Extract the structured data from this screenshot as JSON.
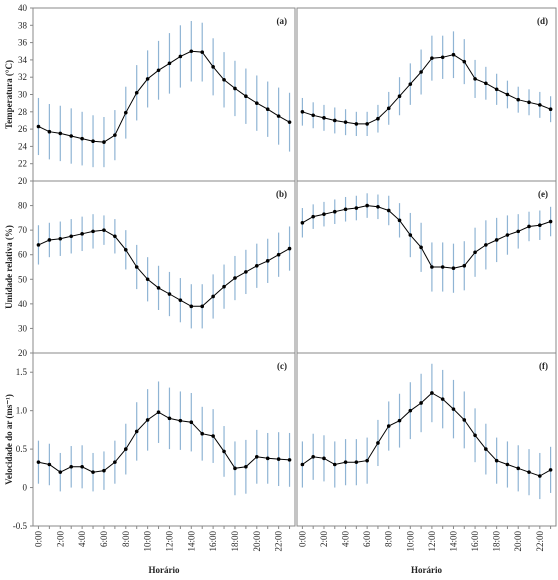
{
  "chart_data": [
    {
      "type": "line",
      "annotation": "(a)",
      "ylabel": "Temperatura (°C)",
      "color": "#000000",
      "error_color": "#8fb4d4",
      "values": [
        26.3,
        25.7,
        25.5,
        25.2,
        24.9,
        24.6,
        24.5,
        25.3,
        27.9,
        30.2,
        31.8,
        32.8,
        33.6,
        34.4,
        35.0,
        34.9,
        33.2,
        31.7,
        30.7,
        29.8,
        29.0,
        28.3,
        27.5,
        26.8
      ],
      "errors": [
        3.3,
        3.2,
        3.2,
        3.2,
        3.1,
        3.0,
        2.9,
        2.9,
        3.0,
        3.2,
        3.3,
        3.4,
        3.5,
        3.6,
        3.5,
        3.4,
        3.3,
        3.2,
        3.2,
        3.2,
        3.2,
        3.2,
        3.3,
        3.4
      ],
      "ylim": [
        20,
        40
      ],
      "yticks": [
        20,
        22,
        24,
        26,
        28,
        30,
        32,
        34,
        36,
        38,
        40
      ]
    },
    {
      "type": "line",
      "annotation": "(b)",
      "ylabel": "Umidade relativa (%)",
      "color": "#000000",
      "error_color": "#8fb4d4",
      "values": [
        64,
        66,
        66.5,
        67.5,
        68.5,
        69.5,
        70,
        67.5,
        62,
        55,
        50,
        46.5,
        44,
        41.5,
        39,
        39,
        43,
        47,
        50.5,
        53,
        55.5,
        57.5,
        60,
        62.5
      ],
      "errors": [
        8,
        7,
        7,
        7,
        7,
        7,
        6,
        7,
        8,
        9,
        9,
        9,
        9,
        9,
        9,
        9,
        9,
        9,
        9,
        9,
        9,
        9,
        9,
        9
      ],
      "ylim": [
        20,
        90
      ],
      "yticks": [
        20,
        30,
        40,
        50,
        60,
        70,
        80
      ]
    },
    {
      "type": "line",
      "annotation": "(c)",
      "ylabel": "Velocidade do ar (ms⁻¹)",
      "x_label": "Horário",
      "color": "#000000",
      "error_color": "#8fb4d4",
      "categories": [
        "0:00",
        null,
        "2:00",
        null,
        "4:00",
        null,
        "6:00",
        null,
        "8:00",
        null,
        "10:00",
        null,
        "12:00",
        null,
        "14:00",
        null,
        "16:00",
        null,
        "18:00",
        null,
        "20:00",
        null,
        "22:00",
        null
      ],
      "values": [
        0.33,
        0.3,
        0.2,
        0.27,
        0.27,
        0.2,
        0.22,
        0.33,
        0.5,
        0.73,
        0.88,
        0.98,
        0.9,
        0.87,
        0.85,
        0.7,
        0.67,
        0.47,
        0.25,
        0.27,
        0.4,
        0.38,
        0.37,
        0.36
      ],
      "errors": [
        0.28,
        0.27,
        0.25,
        0.27,
        0.28,
        0.25,
        0.25,
        0.28,
        0.33,
        0.38,
        0.4,
        0.4,
        0.4,
        0.38,
        0.38,
        0.35,
        0.35,
        0.33,
        0.35,
        0.35,
        0.35,
        0.33,
        0.35,
        0.35
      ],
      "ylim": [
        -0.5,
        1.75
      ],
      "yticks": [
        -0.5,
        0,
        0.5,
        {
          "value": 1,
          "label": "1.0"
        },
        1.5
      ]
    },
    {
      "type": "line",
      "annotation": "(d)",
      "color": "#000000",
      "error_color": "#8fb4d4",
      "values": [
        28,
        27.6,
        27.3,
        27.0,
        26.8,
        26.6,
        26.6,
        27.2,
        28.4,
        29.8,
        31.2,
        32.6,
        34.2,
        34.3,
        34.6,
        33.8,
        31.8,
        31.3,
        30.6,
        30.0,
        29.4,
        29.1,
        28.8,
        28.3
      ],
      "errors": [
        1.6,
        1.5,
        1.5,
        1.5,
        1.5,
        1.4,
        1.4,
        1.6,
        1.9,
        2.2,
        2.4,
        2.6,
        2.6,
        2.5,
        2.7,
        2.6,
        2.2,
        1.9,
        1.8,
        1.6,
        1.5,
        1.5,
        1.5,
        1.5
      ],
      "ylim": [
        20,
        40
      ]
    },
    {
      "type": "line",
      "annotation": "(e)",
      "color": "#000000",
      "error_color": "#8fb4d4",
      "values": [
        73,
        75.5,
        76.5,
        77.5,
        78.5,
        79,
        80,
        79.5,
        78,
        74,
        68,
        63,
        55,
        55,
        54.5,
        55.5,
        61,
        64,
        66,
        68,
        69.5,
        71.5,
        72,
        73.5
      ],
      "errors": [
        6,
        5,
        5,
        5,
        5,
        5,
        5,
        5,
        6,
        7,
        9,
        10,
        10,
        10,
        10,
        10,
        10,
        10,
        9,
        8,
        7,
        6,
        6,
        6
      ],
      "ylim": [
        20,
        90
      ]
    },
    {
      "type": "line",
      "annotation": "(f)",
      "x_label": "Horário",
      "color": "#000000",
      "error_color": "#8fb4d4",
      "categories": [
        "0:00",
        null,
        "2:00",
        null,
        "4:00",
        null,
        "6:00",
        null,
        "8:00",
        null,
        "10:00",
        null,
        "12:00",
        null,
        "14:00",
        null,
        "16:00",
        null,
        "18:00",
        null,
        "20:00",
        null,
        "22:00",
        null
      ],
      "values": [
        0.3,
        0.4,
        0.38,
        0.3,
        0.33,
        0.33,
        0.35,
        0.58,
        0.8,
        0.87,
        1.0,
        1.1,
        1.23,
        1.15,
        1.02,
        0.88,
        0.68,
        0.5,
        0.35,
        0.3,
        0.25,
        0.2,
        0.15,
        0.23
      ],
      "errors": [
        0.3,
        0.3,
        0.3,
        0.3,
        0.3,
        0.3,
        0.3,
        0.3,
        0.32,
        0.35,
        0.37,
        0.38,
        0.38,
        0.38,
        0.38,
        0.37,
        0.35,
        0.33,
        0.3,
        0.3,
        0.3,
        0.3,
        0.3,
        0.3
      ],
      "ylim": [
        -0.5,
        1.75
      ]
    }
  ]
}
